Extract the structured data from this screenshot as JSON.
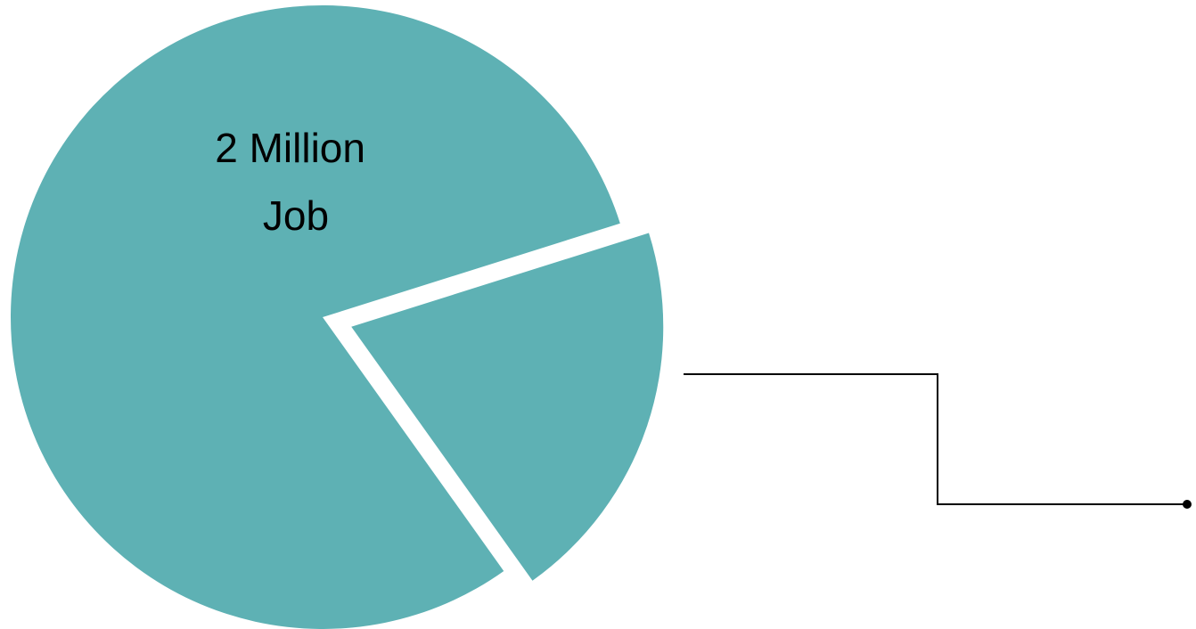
{
  "chart_data": {
    "type": "pie",
    "slices": [
      {
        "label_lines": [
          "2 Million",
          "Job"
        ],
        "percent": 80,
        "exploded": false
      },
      {
        "label_lines": [],
        "percent": 20,
        "exploded": true
      }
    ],
    "colors": {
      "slice": "#5eb1b4",
      "connector": "#000000",
      "background": "#ffffff"
    }
  }
}
